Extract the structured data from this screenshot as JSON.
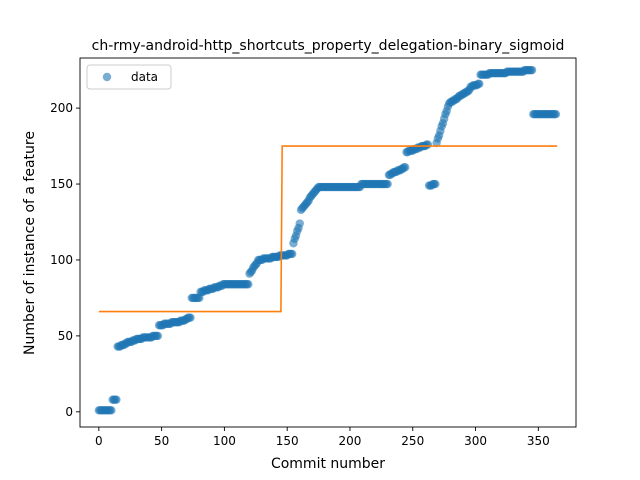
{
  "chart_data": {
    "type": "scatter",
    "title": "ch-rmy-android-http_shortcuts_property_delegation-binary_sigmoid",
    "xlabel": "Commit number",
    "ylabel": "Number of instance of a feature",
    "xlim": [
      -15,
      380
    ],
    "ylim": [
      -10,
      233
    ],
    "xticks": [
      0,
      50,
      100,
      150,
      200,
      250,
      300,
      350
    ],
    "yticks": [
      0,
      50,
      100,
      150,
      200
    ],
    "grid": false,
    "legend": {
      "placement": "top-left",
      "entries": [
        "data"
      ]
    },
    "colors": {
      "data": "#1f77b4",
      "fit": "#ff7f0e"
    },
    "series": [
      {
        "name": "data",
        "kind": "scatter",
        "segments": [
          {
            "x0": 0,
            "x1": 4,
            "y0": 1,
            "y1": 1
          },
          {
            "x0": 5,
            "x1": 10,
            "y0": 1,
            "y1": 1
          },
          {
            "x0": 11,
            "x1": 14,
            "y0": 8,
            "y1": 8
          },
          {
            "x0": 15,
            "x1": 20,
            "y0": 43,
            "y1": 44
          },
          {
            "x0": 21,
            "x1": 29,
            "y0": 45,
            "y1": 47
          },
          {
            "x0": 30,
            "x1": 47,
            "y0": 48,
            "y1": 50
          },
          {
            "x0": 48,
            "x1": 68,
            "y0": 57,
            "y1": 60
          },
          {
            "x0": 69,
            "x1": 73,
            "y0": 61,
            "y1": 62
          },
          {
            "x0": 74,
            "x1": 80,
            "y0": 75,
            "y1": 75
          },
          {
            "x0": 81,
            "x1": 98,
            "y0": 79,
            "y1": 83
          },
          {
            "x0": 99,
            "x1": 119,
            "y0": 84,
            "y1": 84
          },
          {
            "x0": 120,
            "x1": 126,
            "y0": 91,
            "y1": 98
          },
          {
            "x0": 127,
            "x1": 154,
            "y0": 100,
            "y1": 104
          },
          {
            "x0": 155,
            "x1": 160,
            "y0": 111,
            "y1": 124
          },
          {
            "x0": 161,
            "x1": 175,
            "y0": 133,
            "y1": 148
          },
          {
            "x0": 176,
            "x1": 208,
            "y0": 148,
            "y1": 148
          },
          {
            "x0": 209,
            "x1": 230,
            "y0": 150,
            "y1": 150
          },
          {
            "x0": 231,
            "x1": 244,
            "y0": 156,
            "y1": 161
          },
          {
            "x0": 245,
            "x1": 262,
            "y0": 171,
            "y1": 176
          },
          {
            "x0": 263,
            "x1": 268,
            "y0": 149,
            "y1": 150
          },
          {
            "x0": 269,
            "x1": 278,
            "y0": 177,
            "y1": 201
          },
          {
            "x0": 279,
            "x1": 295,
            "y0": 203,
            "y1": 212
          },
          {
            "x0": 296,
            "x1": 303,
            "y0": 214,
            "y1": 216
          },
          {
            "x0": 304,
            "x1": 345,
            "y0": 222,
            "y1": 225
          },
          {
            "x0": 346,
            "x1": 364,
            "y0": 196,
            "y1": 196
          }
        ]
      },
      {
        "name": "",
        "kind": "line",
        "x": [
          0,
          145,
          146,
          365
        ],
        "y": [
          66,
          66,
          175,
          175
        ]
      }
    ]
  }
}
